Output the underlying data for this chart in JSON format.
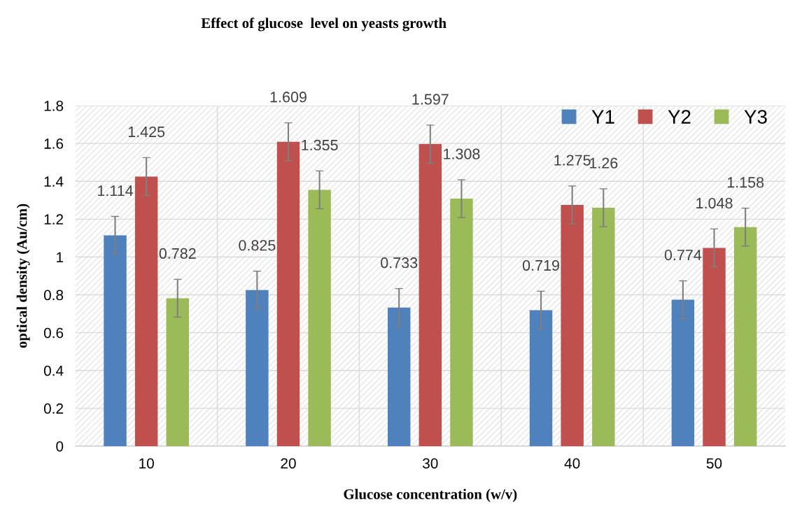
{
  "chart_data": {
    "type": "bar",
    "title": "Effect of glucose  level on yeasts growth",
    "xlabel": "Glucose concentration (w/v)",
    "ylabel": "optical density (Au/cm)",
    "categories": [
      "10",
      "20",
      "30",
      "40",
      "50"
    ],
    "series": [
      {
        "name": "Y1",
        "color": "#4f81bd",
        "values": [
          1.114,
          0.825,
          0.733,
          0.719,
          0.774
        ],
        "errors": [
          0.1,
          0.1,
          0.1,
          0.1,
          0.1
        ]
      },
      {
        "name": "Y2",
        "color": "#c0504d",
        "values": [
          1.425,
          1.609,
          1.597,
          1.275,
          1.048
        ],
        "errors": [
          0.1,
          0.1,
          0.1,
          0.1,
          0.1
        ]
      },
      {
        "name": "Y3",
        "color": "#9bbb59",
        "values": [
          0.782,
          1.355,
          1.308,
          1.26,
          1.158
        ],
        "errors": [
          0.1,
          0.1,
          0.1,
          0.1,
          0.1
        ]
      }
    ],
    "ylim": [
      0,
      1.8
    ],
    "yticks": [
      0,
      0.2,
      0.4,
      0.6,
      0.8,
      1,
      1.2,
      1.4,
      1.6,
      1.8
    ],
    "grid": true,
    "legend": "top right",
    "data_labels": true
  }
}
